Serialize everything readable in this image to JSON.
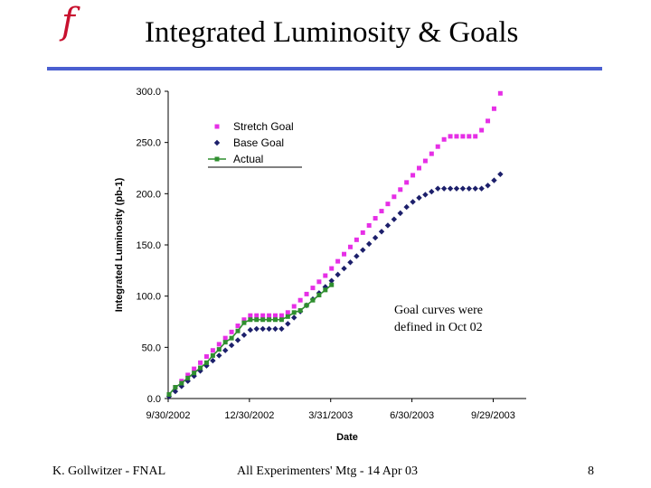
{
  "slide": {
    "logo_text": "f",
    "title": "Integrated Luminosity & Goals",
    "accent_color": "#4a5fd0",
    "note_lines": [
      "Goal curves were",
      "defined in Oct 02"
    ],
    "footer_left": "K. Gollwitzer - FNAL",
    "footer_center": "All Experimenters' Mtg - 14 Apr 03",
    "footer_right": "8"
  },
  "chart_data": {
    "type": "scatter",
    "title": "",
    "xlabel": "Date",
    "ylabel": "Integrated Luminosity (pb-1)",
    "x_ticks": [
      "9/30/2002",
      "12/30/2002",
      "3/31/2003",
      "6/30/2003",
      "9/29/2003"
    ],
    "xlim": [
      "2002-09-30",
      "2003-11-05"
    ],
    "ylim": [
      0,
      300
    ],
    "y_ticks": [
      "0.0",
      "50.0",
      "100.0",
      "150.0",
      "200.0",
      "250.0",
      "300.0"
    ],
    "grid": false,
    "legend_position": "top-left",
    "series": [
      {
        "name": "Stretch Goal",
        "color": "#e62fe6",
        "marker": "square",
        "points": [
          [
            "2002-10-01",
            4
          ],
          [
            "2002-10-08",
            11
          ],
          [
            "2002-10-15",
            17
          ],
          [
            "2002-10-22",
            23
          ],
          [
            "2002-10-29",
            29
          ],
          [
            "2002-11-05",
            35
          ],
          [
            "2002-11-12",
            41
          ],
          [
            "2002-11-19",
            47
          ],
          [
            "2002-11-26",
            53
          ],
          [
            "2002-12-03",
            59
          ],
          [
            "2002-12-10",
            65
          ],
          [
            "2002-12-17",
            71
          ],
          [
            "2002-12-24",
            77
          ],
          [
            "2002-12-31",
            81
          ],
          [
            "2003-01-07",
            81
          ],
          [
            "2003-01-14",
            81
          ],
          [
            "2003-01-21",
            81
          ],
          [
            "2003-01-28",
            81
          ],
          [
            "2003-02-04",
            81
          ],
          [
            "2003-02-11",
            84
          ],
          [
            "2003-02-18",
            90
          ],
          [
            "2003-02-25",
            96
          ],
          [
            "2003-03-04",
            102
          ],
          [
            "2003-03-11",
            108
          ],
          [
            "2003-03-18",
            114
          ],
          [
            "2003-03-25",
            120
          ],
          [
            "2003-04-01",
            127
          ],
          [
            "2003-04-08",
            134
          ],
          [
            "2003-04-15",
            141
          ],
          [
            "2003-04-22",
            148
          ],
          [
            "2003-04-29",
            155
          ],
          [
            "2003-05-06",
            162
          ],
          [
            "2003-05-13",
            169
          ],
          [
            "2003-05-20",
            176
          ],
          [
            "2003-05-27",
            183
          ],
          [
            "2003-06-03",
            190
          ],
          [
            "2003-06-10",
            197
          ],
          [
            "2003-06-17",
            204
          ],
          [
            "2003-06-24",
            211
          ],
          [
            "2003-07-01",
            218
          ],
          [
            "2003-07-08",
            225
          ],
          [
            "2003-07-15",
            232
          ],
          [
            "2003-07-22",
            239
          ],
          [
            "2003-07-29",
            246
          ],
          [
            "2003-08-05",
            253
          ],
          [
            "2003-08-12",
            256
          ],
          [
            "2003-08-19",
            256
          ],
          [
            "2003-08-26",
            256
          ],
          [
            "2003-09-02",
            256
          ],
          [
            "2003-09-09",
            256
          ],
          [
            "2003-09-16",
            262
          ],
          [
            "2003-09-23",
            271
          ],
          [
            "2003-09-30",
            283
          ],
          [
            "2003-10-07",
            298
          ]
        ]
      },
      {
        "name": "Base Goal",
        "color": "#1c1f6b",
        "marker": "diamond",
        "points": [
          [
            "2002-10-01",
            2
          ],
          [
            "2002-10-08",
            7
          ],
          [
            "2002-10-15",
            12
          ],
          [
            "2002-10-22",
            17
          ],
          [
            "2002-10-29",
            22
          ],
          [
            "2002-11-05",
            27
          ],
          [
            "2002-11-12",
            32
          ],
          [
            "2002-11-19",
            37
          ],
          [
            "2002-11-26",
            42
          ],
          [
            "2002-12-03",
            47
          ],
          [
            "2002-12-10",
            52
          ],
          [
            "2002-12-17",
            57
          ],
          [
            "2002-12-24",
            62
          ],
          [
            "2002-12-31",
            67
          ],
          [
            "2003-01-07",
            68
          ],
          [
            "2003-01-14",
            68
          ],
          [
            "2003-01-21",
            68
          ],
          [
            "2003-01-28",
            68
          ],
          [
            "2003-02-04",
            68
          ],
          [
            "2003-02-11",
            73
          ],
          [
            "2003-02-18",
            79
          ],
          [
            "2003-02-25",
            85
          ],
          [
            "2003-03-04",
            91
          ],
          [
            "2003-03-11",
            97
          ],
          [
            "2003-03-18",
            103
          ],
          [
            "2003-03-25",
            109
          ],
          [
            "2003-04-01",
            115
          ],
          [
            "2003-04-08",
            121
          ],
          [
            "2003-04-15",
            127
          ],
          [
            "2003-04-22",
            133
          ],
          [
            "2003-04-29",
            139
          ],
          [
            "2003-05-06",
            145
          ],
          [
            "2003-05-13",
            151
          ],
          [
            "2003-05-20",
            157
          ],
          [
            "2003-05-27",
            163
          ],
          [
            "2003-06-03",
            169
          ],
          [
            "2003-06-10",
            175
          ],
          [
            "2003-06-17",
            181
          ],
          [
            "2003-06-24",
            187
          ],
          [
            "2003-07-01",
            192
          ],
          [
            "2003-07-08",
            196
          ],
          [
            "2003-07-15",
            199
          ],
          [
            "2003-07-22",
            202
          ],
          [
            "2003-07-29",
            205
          ],
          [
            "2003-08-05",
            205
          ],
          [
            "2003-08-12",
            205
          ],
          [
            "2003-08-19",
            205
          ],
          [
            "2003-08-26",
            205
          ],
          [
            "2003-09-02",
            205
          ],
          [
            "2003-09-09",
            205
          ],
          [
            "2003-09-16",
            205
          ],
          [
            "2003-09-23",
            208
          ],
          [
            "2003-09-30",
            213
          ],
          [
            "2003-10-07",
            219
          ]
        ]
      },
      {
        "name": "Actual",
        "color": "#2f8f2f",
        "marker": "square",
        "line": true,
        "points": [
          [
            "2002-10-01",
            4
          ],
          [
            "2002-10-08",
            11
          ],
          [
            "2002-10-15",
            15
          ],
          [
            "2002-10-22",
            20
          ],
          [
            "2002-10-29",
            25
          ],
          [
            "2002-11-05",
            30
          ],
          [
            "2002-11-12",
            35
          ],
          [
            "2002-11-19",
            42
          ],
          [
            "2002-11-26",
            48
          ],
          [
            "2002-12-03",
            55
          ],
          [
            "2002-12-10",
            59
          ],
          [
            "2002-12-17",
            66
          ],
          [
            "2002-12-24",
            74
          ],
          [
            "2002-12-31",
            77
          ],
          [
            "2003-01-07",
            77
          ],
          [
            "2003-01-14",
            77
          ],
          [
            "2003-01-21",
            77
          ],
          [
            "2003-01-28",
            77
          ],
          [
            "2003-02-04",
            77
          ],
          [
            "2003-02-11",
            80
          ],
          [
            "2003-02-18",
            84
          ],
          [
            "2003-02-25",
            86
          ],
          [
            "2003-03-04",
            91
          ],
          [
            "2003-03-11",
            96
          ],
          [
            "2003-03-18",
            101
          ],
          [
            "2003-03-25",
            106
          ],
          [
            "2003-04-01",
            111
          ]
        ]
      }
    ]
  }
}
